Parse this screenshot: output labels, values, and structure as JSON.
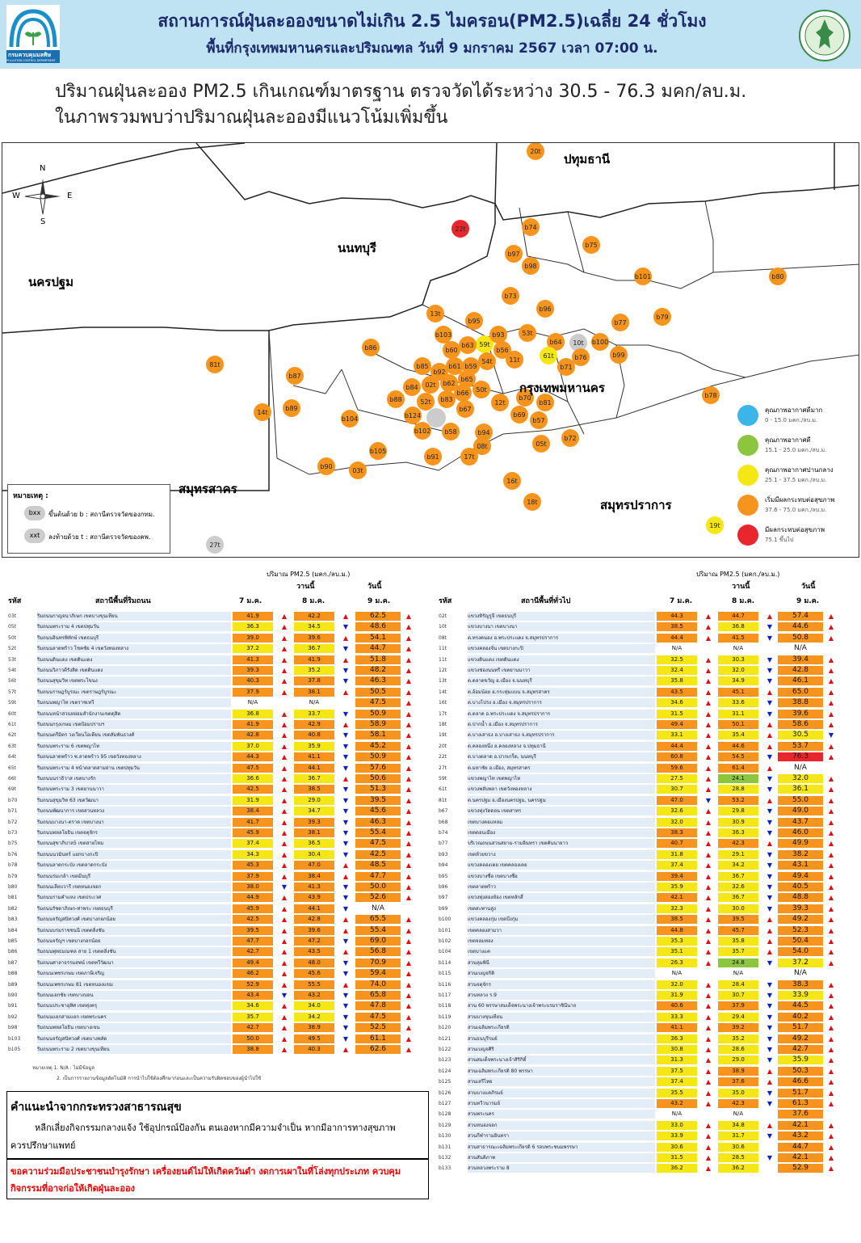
{
  "header": {
    "title": "สถานการณ์ฝุ่นละอองขนาดไม่เกิน 2.5 ไมครอน(PM2.5)เฉลี่ย 24 ชั่วโมง",
    "subtitle": "พื้นที่กรุงเทพมหานครและปริมณฑล วันที่ 9 มกราคม 2567 เวลา 07:00 น.",
    "logo_left_text": "กรมควบคุมมลพิษ",
    "logo_left_text_en": "POLLUTION CONTROL DEPARTMENT"
  },
  "summary": {
    "line1": "ปริมาณฝุ่นละออง PM2.5 เกินเกณฑ์มาตรฐาน ตรวจวัดได้ระหว่าง 30.5 - 76.3 มคก/ลบ.ม.",
    "line2": "ในภาพรวมพบว่าปริมาณฝุ่นละอองมีแนวโน้มเพิ่มขึ้น"
  },
  "map": {
    "provinces": {
      "pathum": "ปทุมธานี",
      "nonthaburi": "นนทบุรี",
      "nakhonpathom": "นครปฐม",
      "bangkok": "กรุงเทพมหานคร",
      "samutsakhon": "สมุทรสาคร",
      "samutprakan": "สมุทรปราการ"
    },
    "compass": {
      "n": "N",
      "s": "S",
      "e": "E",
      "w": "W"
    },
    "note_title": "หมายเหตุ :",
    "note_b_sym": "bxx",
    "note_b": "ขึ้นต้นด้วย b : สถานีตรวจวัดของกทม.",
    "note_t_sym": "xxt",
    "note_t": "ลงท้ายด้วย t : สถานีตรวจวัดของคพ.",
    "legend": [
      {
        "label": "คุณภาพอากาศดีมาก",
        "range": "0 - 15.0 มคก./ลบ.ม.",
        "color": "#3cb5e8"
      },
      {
        "label": "คุณภาพอากาศดี",
        "range": "15.1 - 25.0 มคก./ลบ.ม.",
        "color": "#8cc63f"
      },
      {
        "label": "คุณภาพอากาศปานกลาง",
        "range": "25.1 - 37.5 มคก./ลบ.ม.",
        "color": "#f5e616"
      },
      {
        "label": "เริ่มมีผลกระทบต่อสุขภาพ",
        "range": "37.6 - 75.0 มคก./ลบ.ม.",
        "color": "#f7941d"
      },
      {
        "label": "มีผลกระทบต่อสุขภาพ",
        "range": "75.1 ขึ้นไป",
        "color": "#e8262b"
      }
    ],
    "stations": [
      {
        "id": "20t",
        "c": "o"
      },
      {
        "id": "22t",
        "c": "r"
      },
      {
        "id": "b74",
        "c": "o"
      },
      {
        "id": "b75",
        "c": "o"
      },
      {
        "id": "b97",
        "c": "o"
      },
      {
        "id": "b98",
        "c": "o"
      },
      {
        "id": "b101",
        "c": "o"
      },
      {
        "id": "b80",
        "c": "o"
      },
      {
        "id": "b73",
        "c": "o"
      },
      {
        "id": "b96",
        "c": "o"
      },
      {
        "id": "b79",
        "c": "o"
      },
      {
        "id": "13t",
        "c": "o"
      },
      {
        "id": "b95",
        "c": "o"
      },
      {
        "id": "b77",
        "c": "o"
      },
      {
        "id": "b103",
        "c": "o"
      },
      {
        "id": "59t",
        "c": "y"
      },
      {
        "id": "b93",
        "c": "o"
      },
      {
        "id": "53t",
        "c": "o"
      },
      {
        "id": "b64",
        "c": "o"
      },
      {
        "id": "10t",
        "c": "g"
      },
      {
        "id": "b100",
        "c": "o"
      },
      {
        "id": "b86",
        "c": "o"
      },
      {
        "id": "b63",
        "c": "o"
      },
      {
        "id": "b60",
        "c": "o"
      },
      {
        "id": "b56",
        "c": "o"
      },
      {
        "id": "61t",
        "c": "y"
      },
      {
        "id": "b76",
        "c": "o"
      },
      {
        "id": "b99",
        "c": "o"
      },
      {
        "id": "81t",
        "c": "o"
      },
      {
        "id": "b92",
        "c": "o"
      },
      {
        "id": "54t",
        "c": "o"
      },
      {
        "id": "11t",
        "c": "o"
      },
      {
        "id": "b71",
        "c": "o"
      },
      {
        "id": "b85",
        "c": "o"
      },
      {
        "id": "b61",
        "c": "o"
      },
      {
        "id": "b59",
        "c": "o"
      },
      {
        "id": "b87",
        "c": "o"
      },
      {
        "id": "b65",
        "c": "o"
      },
      {
        "id": "b84",
        "c": "o"
      },
      {
        "id": "02t",
        "c": "o"
      },
      {
        "id": "b62",
        "c": "o"
      },
      {
        "id": "50t",
        "c": "o"
      },
      {
        "id": "b66",
        "c": "o"
      },
      {
        "id": "b78",
        "c": "o"
      },
      {
        "id": "b88",
        "c": "o"
      },
      {
        "id": "52t",
        "c": "o"
      },
      {
        "id": "b83",
        "c": "o"
      },
      {
        "id": "b70",
        "c": "o"
      },
      {
        "id": "b81",
        "c": "o"
      },
      {
        "id": "12t",
        "c": "o"
      },
      {
        "id": "b89",
        "c": "o"
      },
      {
        "id": "14t",
        "c": "o"
      },
      {
        "id": "b124",
        "c": "o"
      },
      {
        "id": "b67",
        "c": "o"
      },
      {
        "id": "b69",
        "c": "o"
      },
      {
        "id": "b57",
        "c": "o"
      },
      {
        "id": "b104",
        "c": "o"
      },
      {
        "id": "b102",
        "c": "o"
      },
      {
        "id": "b58",
        "c": "o"
      },
      {
        "id": "b94",
        "c": "o"
      },
      {
        "id": "b72",
        "c": "o"
      },
      {
        "id": "05t",
        "c": "o"
      },
      {
        "id": "08t",
        "c": "o"
      },
      {
        "id": "b105",
        "c": "o"
      },
      {
        "id": "b91",
        "c": "o"
      },
      {
        "id": "17t",
        "c": "o"
      },
      {
        "id": "b90",
        "c": "o"
      },
      {
        "id": "03t",
        "c": "o"
      },
      {
        "id": "16t",
        "c": "o"
      },
      {
        "id": "18t",
        "c": "o"
      },
      {
        "id": "19t",
        "c": "y"
      },
      {
        "id": "27t",
        "c": "g"
      }
    ]
  },
  "table_header": {
    "unit": "ปริมาณ PM2.5 (มคก./ลบ.ม.)",
    "yesterday": "วานนี้",
    "today": "วันนี้",
    "code": "รหัส",
    "left_station": "สถานีพื้นที่ริมถนน",
    "right_station": "สถานีพื้นที่ทั่วไป",
    "d1": "7 ม.ค.",
    "d2": "8 ม.ค.",
    "d3": "9 ม.ค."
  },
  "left_rows": [
    [
      "03t",
      "ริมถนนกาญจนาภิเษก เขตบางขุนเทียน",
      "41.9",
      "u",
      "42.2",
      "u",
      "62.5",
      "u"
    ],
    [
      "05t",
      "ริมถนนพระราม 4 เขตปทุมวัน",
      "36.3",
      "u",
      "34.5",
      "d",
      "48.6",
      "u"
    ],
    [
      "50t",
      "ริมถนนอินทรพิทักษ์ เขตธนบุรี",
      "39.0",
      "u",
      "39.6",
      "u",
      "54.1",
      "u"
    ],
    [
      "52t",
      "ริมถนนลาดพร้าว โชคชัย 4 เขตวังทองหลาง",
      "37.2",
      "u",
      "36.7",
      "d",
      "44.7",
      "u"
    ],
    [
      "53t",
      "ริมถนนดินแดง เขตดินแดง",
      "41.3",
      "u",
      "41.9",
      "u",
      "51.8",
      "u"
    ],
    [
      "54t",
      "ริมถนนวิภาวดีรังสิต เขตดินแดง",
      "39.3",
      "u",
      "35.2",
      "d",
      "48.2",
      "u"
    ],
    [
      "56t",
      "ริมถนนสุขุมวิท เขตพระโขนง",
      "40.3",
      "u",
      "37.8",
      "d",
      "46.3",
      "u"
    ],
    [
      "57t",
      "ริมถนนราษฎร์บูรณะ เขตราษฎร์บูรณะ",
      "37.9",
      "u",
      "38.1",
      "u",
      "50.5",
      "u"
    ],
    [
      "59t",
      "ริมถนนพญาไท เขตราชเทวี",
      "N/A",
      "",
      "N/A",
      "",
      "47.5",
      "u"
    ],
    [
      "60t",
      "ริมถนนหน้าสวนหย่อมสำนักงานเขตดุสิต",
      "36.8",
      "u",
      "33.7",
      "d",
      "50.9",
      "u"
    ],
    [
      "61t",
      "ริมถนนกรุงเกษม เขตป้อมปราบฯ",
      "41.9",
      "u",
      "42.9",
      "u",
      "58.9",
      "u"
    ],
    [
      "62t",
      "ริมถนนตรีมิตร วงเวียนโอเดียน เขตสัมพันธวงศ์",
      "42.8",
      "u",
      "40.8",
      "d",
      "58.1",
      "u"
    ],
    [
      "63t",
      "ริมถนนพระราม 6 เขตพญาไท",
      "37.0",
      "u",
      "35.9",
      "d",
      "45.2",
      "u"
    ],
    [
      "64t",
      "ริมถนนลาดพร้าว ซ.ลาดพร้าว 95 เขตวังทองหลาง",
      "44.3",
      "u",
      "41.1",
      "d",
      "50.9",
      "u"
    ],
    [
      "65t",
      "ริมถนนพระราม 4 หน้าตลาดสามย่าน เขตปทุมวัน",
      "47.5",
      "u",
      "44.1",
      "d",
      "57.6",
      "u"
    ],
    [
      "66t",
      "ริมถนนนราธิวาส เขตบางรัก",
      "36.6",
      "u",
      "36.7",
      "u",
      "50.6",
      "u"
    ],
    [
      "69t",
      "ริมถนนพระราม 3 เขตยานนาวา",
      "42.5",
      "u",
      "38.5",
      "d",
      "51.3",
      "u"
    ],
    [
      "b70",
      "ริมถนนสุขุมวิท 63 เขตวัฒนา",
      "31.9",
      "u",
      "29.0",
      "d",
      "39.5",
      "u"
    ],
    [
      "b71",
      "ริมถนนพัฒนาการ เขตสวนหลวง",
      "38.4",
      "u",
      "34.7",
      "d",
      "45.6",
      "u"
    ],
    [
      "b72",
      "ริมถนนบางนา-ตราด เขตบางนา",
      "41.7",
      "u",
      "39.3",
      "d",
      "46.3",
      "u"
    ],
    [
      "b73",
      "ริมถนนพหลโยธิน เขตจตุจักร",
      "45.9",
      "u",
      "38.1",
      "d",
      "55.4",
      "u"
    ],
    [
      "b75",
      "ริมถนนสุขาภิบาล5 เขตสายไหม",
      "37.4",
      "u",
      "36.5",
      "d",
      "47.5",
      "u"
    ],
    [
      "b76",
      "ริมถนนนวมินทร์ แยกบางกะปิ",
      "34.3",
      "u",
      "30.4",
      "d",
      "42.5",
      "u"
    ],
    [
      "b78",
      "ริมถนนลาดกระบัง เขตลาดกระบัง",
      "45.3",
      "u",
      "47.0",
      "u",
      "48.5",
      "u"
    ],
    [
      "b79",
      "ริมถนนร่มเกล้า เขตมีนบุรี",
      "37.9",
      "u",
      "38.4",
      "u",
      "47.7",
      "u"
    ],
    [
      "b80",
      "ริมถนนเลียบวารี เขตหนองจอก",
      "38.0",
      "d",
      "41.3",
      "d",
      "50.0",
      "u"
    ],
    [
      "b81",
      "ริมถนนรามคำแหง เขตประเวศ",
      "44.9",
      "u",
      "43.9",
      "d",
      "52.6",
      "u"
    ],
    [
      "b82",
      "ริมถนนรัชดาภิเษก-ท่าพระ เขตธนบุรี",
      "45.9",
      "u",
      "44.1",
      "d",
      "N/A",
      ""
    ],
    [
      "b83",
      "ริมถนนจรัญสนิทวงศ์ เขตบางกอกน้อย",
      "42.5",
      "u",
      "42.8",
      "u",
      "65.5",
      "u"
    ],
    [
      "b84",
      "ริมถนนบรมราชชนนี เขตตลิ่งชัน",
      "39.5",
      "u",
      "39.6",
      "u",
      "55.4",
      "u"
    ],
    [
      "b85",
      "ริมถนนจรัญฯ เขตบางกอกน้อย",
      "47.7",
      "u",
      "47.2",
      "d",
      "69.0",
      "u"
    ],
    [
      "b86",
      "ริมถนนพุทธมณฑล สาย 1 เขตตลิ่งชัน",
      "42.7",
      "u",
      "43.5",
      "u",
      "56.8",
      "u"
    ],
    [
      "b87",
      "ริมถนนศาลาธรรมสพน์ เขตทวีวัฒนา",
      "49.4",
      "u",
      "48.0",
      "d",
      "70.9",
      "u"
    ],
    [
      "b88",
      "ริมถนนเพชรเกษม เขตภาษีเจริญ",
      "46.2",
      "u",
      "45.6",
      "d",
      "59.4",
      "u"
    ],
    [
      "b89",
      "ริมถนนเพชรเกษม 81 เขตหนองแขม",
      "52.9",
      "u",
      "55.5",
      "u",
      "74.0",
      "u"
    ],
    [
      "b90",
      "ริมถนนเอกชัย เขตบางบอน",
      "43.4",
      "d",
      "43.2",
      "d",
      "65.8",
      "u"
    ],
    [
      "b91",
      "ริมถนนประชาอุทิศ เขตทุ่งครุ",
      "34.6",
      "u",
      "34.0",
      "d",
      "47.8",
      "u"
    ],
    [
      "b92",
      "ริมถนนแยกสามแยก เขตพระนคร",
      "35.7",
      "u",
      "34.2",
      "d",
      "47.5",
      "u"
    ],
    [
      "b98",
      "ริมถนนพหลโยธิน เขตบางเขน",
      "42.7",
      "u",
      "38.9",
      "d",
      "52.5",
      "u"
    ],
    [
      "b103",
      "ริมถนนจรัญสนิทวงศ์ เขตบางพลัด",
      "50.0",
      "u",
      "49.5",
      "d",
      "61.1",
      "u"
    ],
    [
      "b105",
      "ริมถนนพระราม 2 เขตบางขุนเทียน",
      "38.8",
      "u",
      "40.3",
      "u",
      "62.6",
      "u"
    ]
  ],
  "right_rows": [
    [
      "02t",
      "แขวงหิรัญรูจี เขตธนบุรี",
      "44.3",
      "u",
      "44.7",
      "u",
      "57.4",
      "u"
    ],
    [
      "10t",
      "แขวงบางนา เขตบางนา",
      "38.5",
      "u",
      "36.8",
      "d",
      "44.6",
      "u"
    ],
    [
      "08t",
      "ต.ทรงคนอง อ.พระประแดง จ.สมุทรปราการ",
      "44.4",
      "u",
      "41.5",
      "d",
      "50.8",
      "u"
    ],
    [
      "11t",
      "แขวงคลองจั่น เขตบางกะปิ",
      "N/A",
      "",
      "N/A",
      "",
      "N/A",
      ""
    ],
    [
      "11t",
      "แขวงดินแดง เขตดินแดง",
      "32.5",
      "u",
      "30.3",
      "d",
      "39.4",
      "u"
    ],
    [
      "12t",
      "แขวงช่องนนทรี เขตยานนาวา",
      "32.4",
      "u",
      "32.0",
      "d",
      "42.8",
      "u"
    ],
    [
      "13t",
      "ต.ตลาดขวัญ อ.เมือง จ.นนทบุรี",
      "35.8",
      "u",
      "34.9",
      "d",
      "46.1",
      "u"
    ],
    [
      "14t",
      "ต.อ้อมน้อย อ.กระทุ่มแบน จ.สมุทรสาคร",
      "43.5",
      "u",
      "45.1",
      "u",
      "65.0",
      "u"
    ],
    [
      "16t",
      "ต.บางโปรง อ.เมือง จ.สมุทรปราการ",
      "34.6",
      "u",
      "33.6",
      "d",
      "38.8",
      "u"
    ],
    [
      "17t",
      "ต.ตลาด อ.พระประแดง จ.สมุทรปราการ",
      "31.5",
      "u",
      "31.1",
      "d",
      "39.6",
      "u"
    ],
    [
      "18t",
      "ต.ปากน้ำ อ.เมือง จ.สมุทรปราการ",
      "49.4",
      "u",
      "50.1",
      "u",
      "58.6",
      "u"
    ],
    [
      "19t",
      "ต.บางเสาธง อ.บางเสาธง จ.สมุทรปราการ",
      "33.1",
      "u",
      "35.4",
      "u",
      "30.5",
      "d"
    ],
    [
      "20t",
      "ต.คลองหนึ่ง อ.คลองหลวง จ.ปทุมธานี",
      "44.4",
      "u",
      "44.6",
      "u",
      "53.7",
      "u"
    ],
    [
      "22t",
      "ต.บางตลาด อ.ปากเกร็ด, นนทบุรี",
      "60.8",
      "u",
      "54.5",
      "d",
      "76.3",
      "u"
    ],
    [
      "27t",
      "ต.มหาชัย อ.เมือง, สมุทรสาคร",
      "59.6",
      "u",
      "61.4",
      "u",
      "N/A",
      ""
    ],
    [
      "59t",
      "แขวงพญาไท เขตพญาไท",
      "27.5",
      "u",
      "24.1",
      "d",
      "32.0",
      "u"
    ],
    [
      "61t",
      "แขวงพลับพลา เขตวังทองหลาง",
      "30.7",
      "u",
      "28.8",
      "d",
      "36.1",
      "u"
    ],
    [
      "81t",
      "ต.นครปฐม อ.เมืองนครปฐม, นครปฐม",
      "47.0",
      "d",
      "53.2",
      "u",
      "55.0",
      "u"
    ],
    [
      "b67",
      "แขวงทุ่งวัดดอน เขตสาทร",
      "32.6",
      "u",
      "29.8",
      "d",
      "49.0",
      "u"
    ],
    [
      "b68",
      "เขตบางคอแหลม",
      "32.0",
      "u",
      "30.9",
      "d",
      "43.7",
      "u"
    ],
    [
      "b74",
      "เขตดอนเมือง",
      "38.3",
      "u",
      "36.3",
      "d",
      "46.0",
      "u"
    ],
    [
      "b77",
      "บริเวณถนนสวนสยาม-รามอินทรา เขตคันนายาว",
      "40.7",
      "u",
      "42.3",
      "u",
      "49.9",
      "u"
    ],
    [
      "b93",
      "เขตห้วยขวาง",
      "31.8",
      "u",
      "29.1",
      "d",
      "38.2",
      "u"
    ],
    [
      "b94",
      "แขวงคลองเตย เขตคลองเตย",
      "37.4",
      "u",
      "34.2",
      "d",
      "43.1",
      "u"
    ],
    [
      "b95",
      "แขวงบางซื่อ เขตบางซื่อ",
      "39.4",
      "u",
      "36.7",
      "d",
      "49.4",
      "u"
    ],
    [
      "b96",
      "เขตลาดพร้าว",
      "35.9",
      "u",
      "32.6",
      "d",
      "40.5",
      "u"
    ],
    [
      "b97",
      "แขวงทุ่งสองห้อง เขตหลักสี่",
      "42.1",
      "u",
      "36.7",
      "d",
      "48.8",
      "u"
    ],
    [
      "b99",
      "เขตสะพานสูง",
      "32.3",
      "u",
      "30.0",
      "d",
      "39.3",
      "u"
    ],
    [
      "b100",
      "แขวงคลองกุ่ม เขตบึงกุ่ม",
      "38.5",
      "u",
      "39.5",
      "u",
      "49.2",
      "u"
    ],
    [
      "b101",
      "เขตคลองสามวา",
      "44.8",
      "u",
      "45.7",
      "u",
      "52.3",
      "u"
    ],
    [
      "b102",
      "เขตจอมทอง",
      "35.3",
      "u",
      "35.8",
      "u",
      "50.4",
      "u"
    ],
    [
      "b104",
      "เขตบางแค",
      "35.1",
      "u",
      "35.7",
      "u",
      "54.0",
      "u"
    ],
    [
      "b114",
      "สวนลุมพินี",
      "26.3",
      "u",
      "24.8",
      "d",
      "37.2",
      "u"
    ],
    [
      "b115",
      "สวนเบญจกิติ",
      "N/A",
      "",
      "N/A",
      "",
      "N/A",
      ""
    ],
    [
      "b116",
      "สวนจตุจักร",
      "32.0",
      "u",
      "28.4",
      "d",
      "38.3",
      "u"
    ],
    [
      "b117",
      "สวนหลวง ร.9",
      "31.9",
      "u",
      "30.7",
      "d",
      "33.9",
      "u"
    ],
    [
      "b118",
      "สวน 60 พรรษาสมเด็จพระนางเจ้าพระบรมราชินีนาถ",
      "40.6",
      "u",
      "37.9",
      "d",
      "44.5",
      "u"
    ],
    [
      "b119",
      "สวนบางขุนเทียน",
      "33.3",
      "u",
      "29.4",
      "d",
      "40.2",
      "u"
    ],
    [
      "b120",
      "สวนเฉลิมพระเกียรติ",
      "41.1",
      "u",
      "39.2",
      "d",
      "51.7",
      "u"
    ],
    [
      "b121",
      "สวนธนบุรีรมย์",
      "36.3",
      "u",
      "35.2",
      "d",
      "49.2",
      "u"
    ],
    [
      "b122",
      "สวนเบญจศิริ",
      "30.8",
      "u",
      "28.6",
      "d",
      "42.7",
      "u"
    ],
    [
      "b123",
      "สวนสมเด็จพระนางเจ้าสิริกิติ์",
      "31.3",
      "u",
      "29.0",
      "d",
      "35.9",
      "u"
    ],
    [
      "b124",
      "สวนเฉลิมพระเกียรติ 80 พรรษา",
      "37.5",
      "u",
      "38.9",
      "u",
      "50.3",
      "u"
    ],
    [
      "b125",
      "สวนเสรีไทย",
      "37.4",
      "u",
      "37.6",
      "u",
      "46.6",
      "u"
    ],
    [
      "b126",
      "สวนบางแคภิรมย์",
      "35.5",
      "u",
      "35.0",
      "d",
      "51.7",
      "u"
    ],
    [
      "b127",
      "สวนทวีวนารมย์",
      "43.2",
      "u",
      "42.3",
      "d",
      "61.3",
      "u"
    ],
    [
      "b128",
      "สวนพระนคร",
      "N/A",
      "",
      "N/A",
      "",
      "37.6",
      ""
    ],
    [
      "b129",
      "สวนหนองจอก",
      "33.0",
      "u",
      "34.8",
      "u",
      "42.1",
      "u"
    ],
    [
      "b130",
      "สวนกีฬารามอินทรา",
      "33.9",
      "u",
      "31.7",
      "d",
      "43.2",
      "u"
    ],
    [
      "b131",
      "สวนสาธารณะเฉลิมพระเกียรติ 6 รอบพระชนมพรรษา",
      "30.6",
      "u",
      "30.6",
      "",
      "44.7",
      "u"
    ],
    [
      "b132",
      "สวนสันติภาพ",
      "31.5",
      "u",
      "28.5",
      "d",
      "42.1",
      "u"
    ],
    [
      "b133",
      "สวนหลวงพระราม 8",
      "36.2",
      "u",
      "36.2",
      "",
      "52.9",
      "u"
    ]
  ],
  "notes": {
    "n1": "หมายเหตุ 1. N/A : ไม่มีข้อมูล",
    "n2": "2. เป็นการรายงานข้อมูลอัตโนมัติ การนำไปใช้ต้องศึกษาก่อนและเป็นความรับผิดชอบของผู้นำไปใช้"
  },
  "advice": {
    "title": "คำแนะนำจากกระทรวงสาธารณสุข",
    "text": "หลีกเลี่ยงกิจกรรมกลางแจ้ง ใช้อุปกรณ์ป้องกัน ตนเองหากมีความจำเป็น หากมีอาการทางสุขภาพ ควรปรึกษาแพทย์"
  },
  "cooperation": {
    "text": "ขอความร่วมมือประชาชนบำรุงรักษา เครื่องยนต์ไม่ให้เกิดควันดำ งดการเผาในที่โล่งทุกประเภท ควบคุมกิจกรรมที่อาจก่อให้เกิดฝุ่นละออง"
  }
}
